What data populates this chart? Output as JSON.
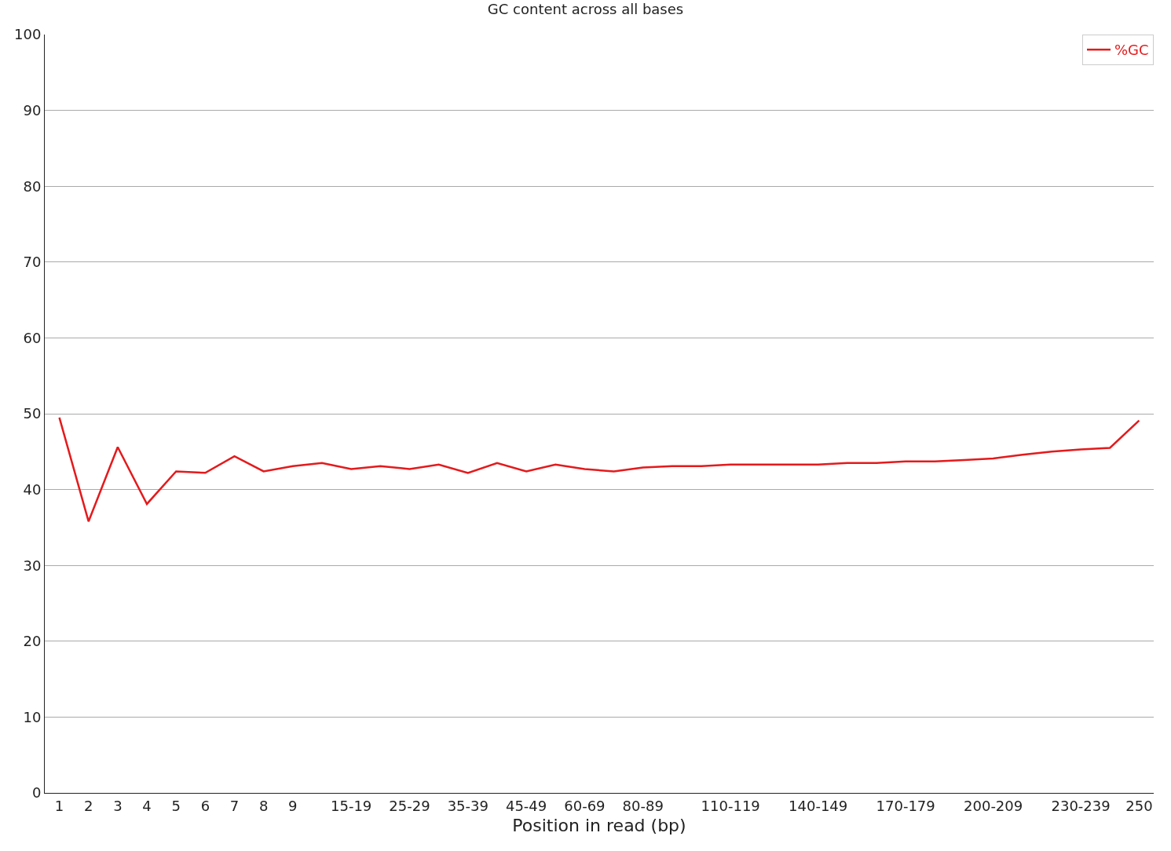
{
  "chart_data": {
    "type": "line",
    "title": "GC content across all bases",
    "xlabel": "Position in read (bp)",
    "categories": [
      "1",
      "2",
      "3",
      "4",
      "5",
      "6",
      "7",
      "8",
      "9",
      null,
      "15-19",
      null,
      "25-29",
      null,
      "35-39",
      null,
      "45-49",
      null,
      "60-69",
      null,
      "80-89",
      null,
      null,
      "110-119",
      null,
      null,
      "140-149",
      null,
      null,
      "170-179",
      null,
      null,
      "200-209",
      null,
      null,
      "230-239",
      null,
      "250"
    ],
    "series": [
      {
        "name": "%GC",
        "color": "#e41a1c",
        "values": [
          49.5,
          35.8,
          45.6,
          38.1,
          42.4,
          42.2,
          44.4,
          42.4,
          43.1,
          43.5,
          42.7,
          43.1,
          42.7,
          43.3,
          42.2,
          43.5,
          42.4,
          43.3,
          42.7,
          42.4,
          42.9,
          43.1,
          43.1,
          43.3,
          43.3,
          43.3,
          43.3,
          43.5,
          43.5,
          43.7,
          43.7,
          43.9,
          44.1,
          44.6,
          45.0,
          45.3,
          45.5,
          49.1
        ]
      }
    ],
    "ylim": [
      0,
      100
    ],
    "yticks": [
      0,
      10,
      20,
      30,
      40,
      50,
      60,
      70,
      80,
      90,
      100
    ],
    "grid": "y",
    "legend": "top right"
  }
}
